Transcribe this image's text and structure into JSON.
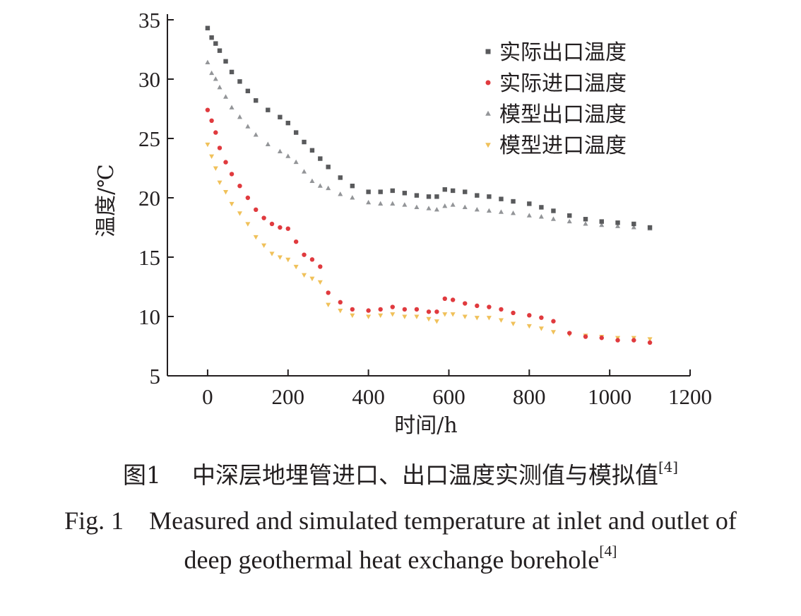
{
  "chart_data": {
    "type": "scatter",
    "xlabel": "时间/h",
    "ylabel": "温度/℃",
    "xlim": [
      -100,
      1200
    ],
    "ylim": [
      5,
      35
    ],
    "xticks": [
      0,
      200,
      400,
      600,
      800,
      1000,
      1200
    ],
    "yticks": [
      5,
      10,
      15,
      20,
      25,
      30,
      35
    ],
    "grid": false,
    "legend_position": "top-right",
    "series": [
      {
        "name": "实际出口温度",
        "marker": "square",
        "color": "#595a5c",
        "x": [
          0,
          10,
          20,
          30,
          45,
          60,
          80,
          100,
          120,
          150,
          180,
          200,
          220,
          240,
          260,
          280,
          300,
          330,
          360,
          400,
          430,
          460,
          490,
          520,
          550,
          570,
          590,
          610,
          640,
          670,
          700,
          730,
          760,
          800,
          830,
          860,
          900,
          940,
          980,
          1020,
          1060,
          1100
        ],
        "y": [
          34.3,
          33.5,
          33.0,
          32.4,
          31.5,
          30.6,
          29.8,
          29.0,
          28.2,
          27.4,
          26.8,
          26.3,
          25.5,
          24.7,
          24.0,
          23.3,
          22.6,
          21.7,
          21.0,
          20.5,
          20.5,
          20.6,
          20.4,
          20.2,
          20.1,
          20.1,
          20.7,
          20.6,
          20.5,
          20.2,
          20.1,
          19.9,
          19.7,
          19.5,
          19.2,
          18.9,
          18.5,
          18.2,
          18.0,
          17.9,
          17.8,
          17.5
        ]
      },
      {
        "name": "实际进口温度",
        "marker": "circle",
        "color": "#e03a3e",
        "x": [
          0,
          10,
          20,
          30,
          45,
          60,
          80,
          100,
          120,
          140,
          160,
          180,
          200,
          220,
          240,
          260,
          280,
          300,
          330,
          360,
          400,
          430,
          460,
          490,
          520,
          550,
          570,
          590,
          610,
          640,
          670,
          700,
          730,
          760,
          800,
          830,
          860,
          900,
          940,
          980,
          1020,
          1060,
          1100
        ],
        "y": [
          27.4,
          26.5,
          25.5,
          24.2,
          23.0,
          22.0,
          21.0,
          20.0,
          19.0,
          18.3,
          17.8,
          17.5,
          17.4,
          16.3,
          15.2,
          14.8,
          14.2,
          12.0,
          11.2,
          10.6,
          10.5,
          10.6,
          10.8,
          10.6,
          10.6,
          10.4,
          10.4,
          11.5,
          11.4,
          11.1,
          10.9,
          10.8,
          10.6,
          10.3,
          10.1,
          9.9,
          9.6,
          8.6,
          8.3,
          8.2,
          8.0,
          8.0,
          7.8
        ]
      },
      {
        "name": "模型出口温度",
        "marker": "triangle-up",
        "color": "#939598",
        "x": [
          0,
          10,
          20,
          30,
          45,
          60,
          80,
          100,
          120,
          150,
          180,
          200,
          220,
          240,
          260,
          280,
          300,
          330,
          360,
          400,
          430,
          460,
          490,
          520,
          550,
          570,
          590,
          610,
          640,
          670,
          700,
          730,
          760,
          800,
          830,
          860,
          900,
          940,
          980,
          1020,
          1060,
          1100
        ],
        "y": [
          31.4,
          30.5,
          30.0,
          29.3,
          28.5,
          27.6,
          26.8,
          26.0,
          25.3,
          24.5,
          23.9,
          23.5,
          23.0,
          22.2,
          21.4,
          21.0,
          20.8,
          20.3,
          20.0,
          19.6,
          19.5,
          19.5,
          19.4,
          19.2,
          19.1,
          19.0,
          19.3,
          19.4,
          19.2,
          19.0,
          18.9,
          18.8,
          18.7,
          18.5,
          18.4,
          18.2,
          18.0,
          17.8,
          17.7,
          17.6,
          17.5,
          17.4
        ]
      },
      {
        "name": "模型进口温度",
        "marker": "triangle-down",
        "color": "#f0c15a",
        "x": [
          0,
          10,
          20,
          30,
          45,
          60,
          80,
          100,
          120,
          140,
          160,
          180,
          200,
          220,
          240,
          260,
          280,
          300,
          330,
          360,
          400,
          430,
          460,
          490,
          520,
          550,
          570,
          590,
          610,
          640,
          670,
          700,
          730,
          760,
          800,
          830,
          860,
          900,
          940,
          980,
          1020,
          1060,
          1100
        ],
        "y": [
          24.5,
          23.5,
          22.5,
          21.3,
          20.5,
          19.5,
          18.7,
          17.8,
          16.7,
          16.0,
          15.3,
          15.0,
          14.8,
          14.2,
          13.5,
          13.2,
          12.9,
          11.0,
          10.5,
          10.1,
          10.0,
          10.1,
          10.2,
          10.0,
          10.0,
          9.8,
          9.6,
          10.2,
          10.2,
          10.0,
          9.9,
          9.9,
          9.7,
          9.4,
          9.2,
          9.0,
          8.7,
          8.5,
          8.4,
          8.3,
          8.2,
          8.2,
          8.1
        ]
      }
    ]
  },
  "caption": {
    "cn_label": "图1",
    "cn_text": "中深层地埋管进口、出口温度实测值与模拟值",
    "ref": "[4]",
    "en_line1": "Fig. 1    Measured and simulated temperature at inlet and outlet of",
    "en_line2": "deep geothermal heat exchange borehole"
  }
}
